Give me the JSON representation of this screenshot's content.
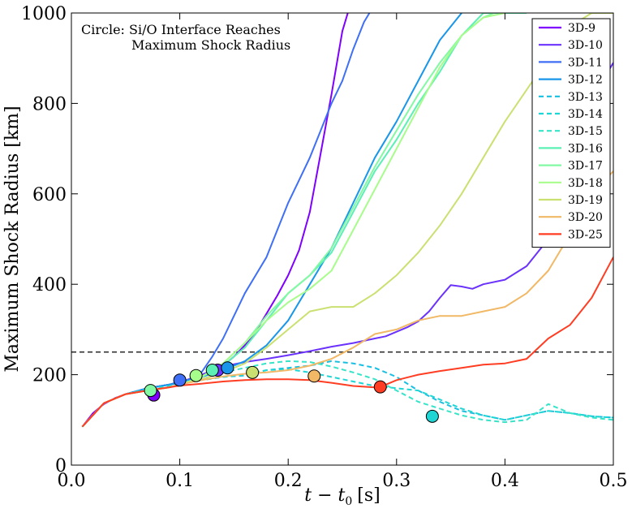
{
  "chart_data": {
    "type": "line",
    "title": "",
    "xlabel": "t − t",
    "xlabel_subscript": "0",
    "xlabel_unit": "[s]",
    "ylabel": "Maximum Shock Radius [km]",
    "xlim": [
      0.0,
      0.5
    ],
    "ylim": [
      0,
      1000
    ],
    "xticks": [
      0.0,
      0.1,
      0.2,
      0.3,
      0.4,
      0.5
    ],
    "xtick_labels": [
      "0.0",
      "0.1",
      "0.2",
      "0.3",
      "0.4",
      "0.5"
    ],
    "yticks": [
      0,
      200,
      400,
      600,
      800,
      1000
    ],
    "ytick_labels": [
      "0",
      "200",
      "400",
      "600",
      "800",
      "1000"
    ],
    "reference_line": {
      "y": 250,
      "style": "dashed",
      "color": "#000000"
    },
    "annotation": [
      "Circle: Si/O Interface Reaches",
      "Maximum Shock Radius"
    ],
    "legend_position": "top-right",
    "series": [
      {
        "name": "3D-9",
        "color": "#7f00ff",
        "dashed": false,
        "x": [
          0.01,
          0.02,
          0.03,
          0.04,
          0.05,
          0.06,
          0.07,
          0.08,
          0.09,
          0.1,
          0.11,
          0.12,
          0.13,
          0.14,
          0.15,
          0.16,
          0.17,
          0.18,
          0.19,
          0.2,
          0.21,
          0.22,
          0.23,
          0.24,
          0.25,
          0.255
        ],
        "y": [
          85,
          115,
          135,
          148,
          157,
          163,
          170,
          174,
          178,
          182,
          188,
          195,
          205,
          220,
          240,
          265,
          295,
          335,
          375,
          420,
          475,
          560,
          690,
          820,
          960,
          1000
        ],
        "marker": {
          "x": 0.076,
          "y": 155
        }
      },
      {
        "name": "3D-10",
        "color": "#6b32fb",
        "dashed": false,
        "x": [
          0.01,
          0.03,
          0.05,
          0.07,
          0.09,
          0.1,
          0.12,
          0.14,
          0.16,
          0.18,
          0.2,
          0.22,
          0.24,
          0.26,
          0.28,
          0.29,
          0.3,
          0.31,
          0.32,
          0.33,
          0.34,
          0.35,
          0.36,
          0.37,
          0.38,
          0.4,
          0.42,
          0.44,
          0.45,
          0.46,
          0.48,
          0.49,
          0.5
        ],
        "y": [
          85,
          137,
          157,
          170,
          178,
          183,
          200,
          218,
          228,
          235,
          243,
          252,
          262,
          270,
          280,
          285,
          295,
          305,
          318,
          340,
          370,
          398,
          395,
          390,
          400,
          410,
          440,
          500,
          600,
          640,
          750,
          850,
          890
        ],
        "marker": {
          "x": 0.135,
          "y": 210
        }
      },
      {
        "name": "3D-11",
        "color": "#3f6ff5",
        "dashed": false,
        "x": [
          0.01,
          0.03,
          0.05,
          0.07,
          0.09,
          0.1,
          0.11,
          0.12,
          0.13,
          0.14,
          0.15,
          0.16,
          0.17,
          0.18,
          0.19,
          0.2,
          0.21,
          0.22,
          0.23,
          0.24,
          0.25,
          0.26,
          0.27,
          0.275
        ],
        "y": [
          85,
          137,
          157,
          170,
          178,
          185,
          190,
          205,
          240,
          280,
          330,
          380,
          420,
          460,
          520,
          580,
          630,
          680,
          740,
          800,
          850,
          920,
          980,
          1000
        ],
        "marker": {
          "x": 0.1,
          "y": 188
        }
      },
      {
        "name": "3D-12",
        "color": "#1996e9",
        "dashed": false,
        "x": [
          0.01,
          0.03,
          0.05,
          0.07,
          0.09,
          0.1,
          0.12,
          0.14,
          0.16,
          0.18,
          0.2,
          0.22,
          0.24,
          0.26,
          0.28,
          0.3,
          0.32,
          0.34,
          0.36
        ],
        "y": [
          85,
          137,
          157,
          170,
          178,
          182,
          195,
          210,
          230,
          265,
          320,
          400,
          480,
          580,
          680,
          760,
          850,
          940,
          1000
        ],
        "marker": {
          "x": 0.144,
          "y": 215
        }
      },
      {
        "name": "3D-13",
        "color": "#19bfe1",
        "dashed": true,
        "x": [
          0.01,
          0.03,
          0.05,
          0.07,
          0.09,
          0.1,
          0.12,
          0.14,
          0.16,
          0.18,
          0.2,
          0.22,
          0.24,
          0.26,
          0.28,
          0.3,
          0.32,
          0.34,
          0.36,
          0.38,
          0.4,
          0.42,
          0.44,
          0.46,
          0.48,
          0.5
        ],
        "y": [
          85,
          137,
          157,
          168,
          175,
          180,
          188,
          195,
          198,
          210,
          215,
          220,
          230,
          225,
          215,
          195,
          165,
          140,
          120,
          110,
          100,
          110,
          120,
          115,
          108,
          105
        ]
      },
      {
        "name": "3D-14",
        "color": "#1fd6d4",
        "dashed": true,
        "x": [
          0.01,
          0.03,
          0.05,
          0.07,
          0.09,
          0.1,
          0.12,
          0.14,
          0.16,
          0.18,
          0.2,
          0.22,
          0.24,
          0.26,
          0.28,
          0.3,
          0.32,
          0.34,
          0.36,
          0.38,
          0.4,
          0.42,
          0.44,
          0.46,
          0.48,
          0.5
        ],
        "y": [
          85,
          137,
          157,
          168,
          175,
          180,
          188,
          195,
          200,
          210,
          212,
          205,
          195,
          185,
          175,
          170,
          165,
          145,
          125,
          110,
          100,
          110,
          120,
          115,
          108,
          105
        ],
        "marker": {
          "x": 0.333,
          "y": 108
        }
      },
      {
        "name": "3D-15",
        "color": "#38e4c8",
        "dashed": true,
        "x": [
          0.01,
          0.03,
          0.05,
          0.07,
          0.09,
          0.1,
          0.12,
          0.14,
          0.16,
          0.18,
          0.2,
          0.22,
          0.24,
          0.26,
          0.28,
          0.3,
          0.32,
          0.34,
          0.36,
          0.38,
          0.4,
          0.42,
          0.44,
          0.46,
          0.48,
          0.5
        ],
        "y": [
          85,
          137,
          157,
          165,
          172,
          178,
          190,
          205,
          215,
          225,
          230,
          228,
          218,
          205,
          190,
          165,
          140,
          125,
          110,
          100,
          95,
          100,
          135,
          115,
          105,
          100
        ]
      },
      {
        "name": "3D-16",
        "color": "#5df0b5",
        "dashed": false,
        "x": [
          0.01,
          0.03,
          0.05,
          0.07,
          0.09,
          0.1,
          0.12,
          0.14,
          0.16,
          0.18,
          0.2,
          0.22,
          0.24,
          0.26,
          0.28,
          0.3,
          0.32,
          0.34,
          0.36,
          0.38,
          0.4,
          0.42
        ],
        "y": [
          85,
          137,
          157,
          165,
          172,
          178,
          195,
          220,
          260,
          320,
          380,
          420,
          470,
          560,
          650,
          720,
          800,
          870,
          950,
          1000,
          1000,
          1000
        ],
        "marker": {
          "x": 0.13,
          "y": 210
        }
      },
      {
        "name": "3D-17",
        "color": "#82f9a2",
        "dashed": false,
        "x": [
          0.01,
          0.03,
          0.05,
          0.07,
          0.09,
          0.1,
          0.12,
          0.14,
          0.16,
          0.18,
          0.2,
          0.22,
          0.24,
          0.26,
          0.28,
          0.3,
          0.32,
          0.34,
          0.36,
          0.38,
          0.39
        ],
        "y": [
          85,
          137,
          157,
          165,
          172,
          178,
          195,
          225,
          270,
          330,
          380,
          420,
          480,
          570,
          660,
          740,
          820,
          890,
          950,
          990,
          1000
        ],
        "marker": {
          "x": 0.073,
          "y": 165
        }
      },
      {
        "name": "3D-18",
        "color": "#a7fd8b",
        "dashed": false,
        "x": [
          0.01,
          0.03,
          0.05,
          0.07,
          0.09,
          0.1,
          0.12,
          0.14,
          0.16,
          0.18,
          0.2,
          0.22,
          0.24,
          0.26,
          0.28,
          0.3,
          0.32,
          0.34,
          0.36,
          0.38,
          0.4
        ],
        "y": [
          85,
          137,
          157,
          165,
          172,
          178,
          195,
          225,
          270,
          320,
          360,
          390,
          430,
          520,
          610,
          700,
          790,
          880,
          950,
          990,
          1000
        ],
        "marker": {
          "x": 0.115,
          "y": 198
        }
      },
      {
        "name": "3D-19",
        "color": "#cae172",
        "dashed": false,
        "x": [
          0.01,
          0.03,
          0.05,
          0.07,
          0.09,
          0.1,
          0.12,
          0.14,
          0.16,
          0.18,
          0.2,
          0.22,
          0.24,
          0.26,
          0.28,
          0.3,
          0.32,
          0.34,
          0.36,
          0.38,
          0.4,
          0.42,
          0.44,
          0.46,
          0.48,
          0.5
        ],
        "y": [
          85,
          137,
          157,
          165,
          172,
          178,
          190,
          205,
          225,
          260,
          300,
          340,
          350,
          350,
          380,
          420,
          470,
          530,
          600,
          680,
          760,
          830,
          900,
          970,
          1000,
          1000
        ],
        "marker": {
          "x": 0.167,
          "y": 205
        }
      },
      {
        "name": "3D-20",
        "color": "#f1b866",
        "dashed": false,
        "x": [
          0.01,
          0.03,
          0.05,
          0.07,
          0.09,
          0.1,
          0.12,
          0.14,
          0.16,
          0.18,
          0.2,
          0.22,
          0.24,
          0.26,
          0.28,
          0.3,
          0.32,
          0.34,
          0.36,
          0.38,
          0.4,
          0.42,
          0.44,
          0.46,
          0.48,
          0.5
        ],
        "y": [
          85,
          137,
          157,
          165,
          172,
          178,
          188,
          196,
          202,
          205,
          210,
          220,
          235,
          260,
          290,
          300,
          320,
          330,
          330,
          340,
          350,
          380,
          430,
          510,
          600,
          650
        ],
        "marker": {
          "x": 0.224,
          "y": 197
        }
      },
      {
        "name": "3D-25",
        "color": "#ff3d23",
        "dashed": false,
        "x": [
          0.01,
          0.03,
          0.05,
          0.07,
          0.09,
          0.1,
          0.12,
          0.14,
          0.16,
          0.18,
          0.2,
          0.22,
          0.24,
          0.26,
          0.28,
          0.29,
          0.3,
          0.32,
          0.34,
          0.36,
          0.38,
          0.4,
          0.42,
          0.44,
          0.46,
          0.48,
          0.5
        ],
        "y": [
          85,
          137,
          157,
          165,
          172,
          176,
          180,
          185,
          188,
          190,
          190,
          188,
          182,
          175,
          172,
          178,
          188,
          200,
          208,
          215,
          222,
          225,
          235,
          280,
          310,
          370,
          460
        ],
        "marker": {
          "x": 0.285,
          "y": 173
        }
      }
    ]
  }
}
